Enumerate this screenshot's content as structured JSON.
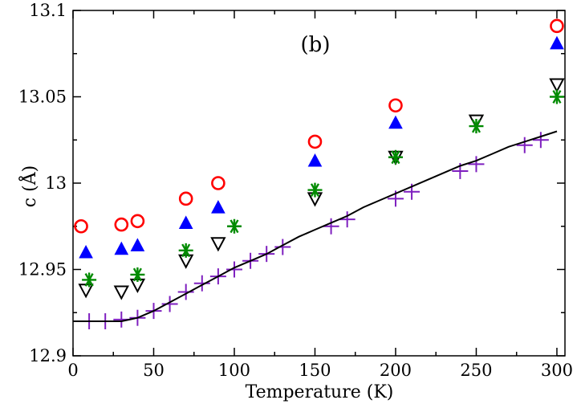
{
  "chart_data": {
    "type": "scatter",
    "title": "",
    "annotation": "(b)",
    "xlabel": "Temperature (K)",
    "ylabel": "c (Å)",
    "xlim": [
      0,
      305
    ],
    "ylim": [
      12.9,
      13.1
    ],
    "x_ticks": [
      0,
      50,
      100,
      150,
      200,
      250,
      300
    ],
    "x_tick_labels": [
      "0",
      "50",
      "100",
      "150",
      "200",
      "250",
      "300"
    ],
    "y_ticks": [
      12.9,
      12.95,
      13.0,
      13.05,
      13.1
    ],
    "y_tick_labels": [
      "12.9",
      "12.95",
      "13",
      "13.05",
      "13.1"
    ],
    "colors": {
      "circle": "#ff0000",
      "triangle_up": "#0000ff",
      "triangle_down": "#000000",
      "star": "#008b00",
      "plus": "#7e1fbf",
      "line": "#000000"
    },
    "series": [
      {
        "name": "open circles",
        "marker": "circle",
        "x": [
          5,
          30,
          40,
          70,
          90,
          150,
          200,
          300
        ],
        "y": [
          12.975,
          12.976,
          12.978,
          12.991,
          13.0,
          13.024,
          13.045,
          13.091
        ]
      },
      {
        "name": "filled triangles up",
        "marker": "triangle_up",
        "x": [
          8,
          30,
          40,
          70,
          90,
          150,
          200,
          300
        ],
        "y": [
          12.96,
          12.962,
          12.964,
          12.977,
          12.986,
          13.013,
          13.035,
          13.081
        ]
      },
      {
        "name": "open triangles down",
        "marker": "triangle_down",
        "x": [
          8,
          30,
          40,
          70,
          90,
          150,
          200,
          250,
          300
        ],
        "y": [
          12.938,
          12.937,
          12.941,
          12.955,
          12.965,
          12.991,
          13.015,
          13.036,
          13.057
        ]
      },
      {
        "name": "stars",
        "marker": "star",
        "x": [
          10,
          40,
          70,
          100,
          150,
          200,
          250,
          300
        ],
        "y": [
          12.944,
          12.947,
          12.961,
          12.975,
          12.996,
          13.015,
          13.033,
          13.05
        ]
      },
      {
        "name": "plus markers",
        "marker": "plus",
        "x": [
          10,
          20,
          30,
          40,
          50,
          60,
          70,
          80,
          90,
          100,
          110,
          120,
          130,
          160,
          170,
          200,
          210,
          240,
          250,
          280,
          290
        ],
        "y": [
          12.92,
          12.92,
          12.921,
          12.922,
          12.926,
          12.93,
          12.937,
          12.942,
          12.946,
          12.95,
          12.955,
          12.959,
          12.963,
          12.975,
          12.979,
          12.991,
          12.995,
          13.007,
          13.011,
          13.022,
          13.025
        ]
      },
      {
        "name": "fit line",
        "marker": "line",
        "x": [
          0,
          10,
          20,
          30,
          35,
          40,
          50,
          60,
          70,
          80,
          90,
          100,
          110,
          120,
          130,
          140,
          150,
          160,
          170,
          180,
          190,
          200,
          210,
          220,
          230,
          240,
          250,
          260,
          270,
          280,
          290,
          300
        ],
        "y": [
          12.92,
          12.92,
          12.92,
          12.92,
          12.921,
          12.922,
          12.926,
          12.931,
          12.936,
          12.941,
          12.946,
          12.951,
          12.955,
          12.959,
          12.964,
          12.969,
          12.973,
          12.977,
          12.981,
          12.986,
          12.99,
          12.994,
          12.998,
          13.002,
          13.006,
          13.01,
          13.013,
          13.017,
          13.021,
          13.024,
          13.027,
          13.03
        ]
      }
    ]
  }
}
